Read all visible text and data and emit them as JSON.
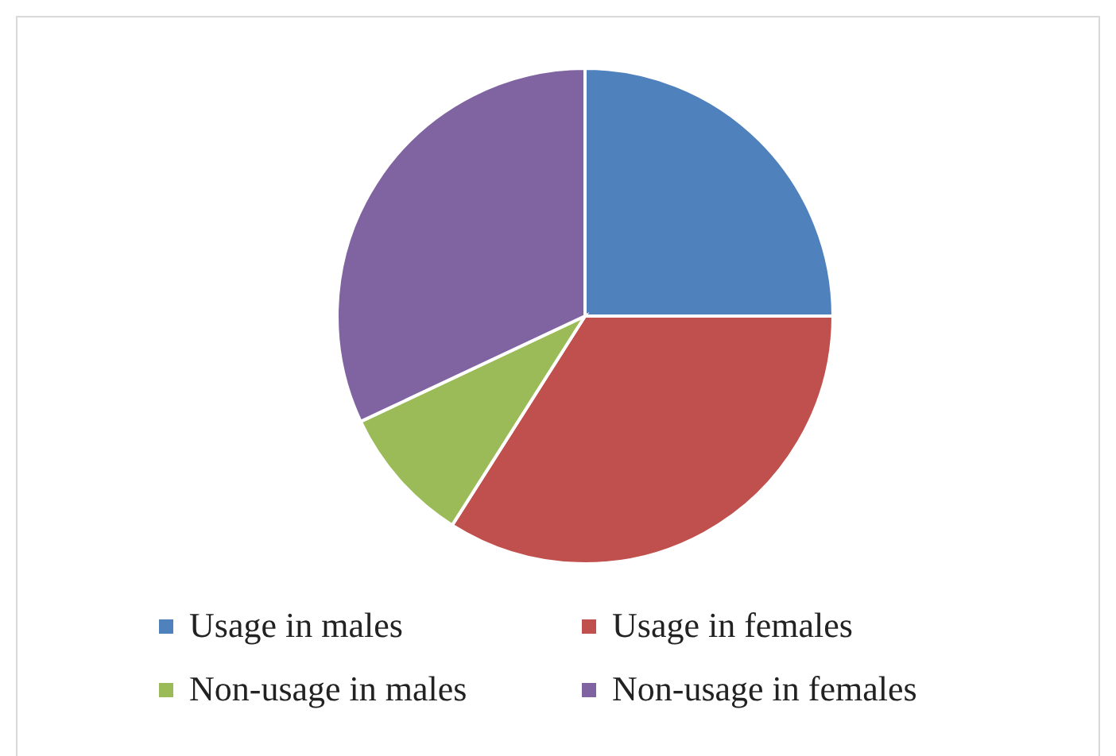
{
  "chart_data": {
    "type": "pie",
    "categories": [
      "Usage in males",
      "Usage in females",
      "Non-usage in males",
      "Non-usage in females"
    ],
    "values": [
      25,
      34,
      9,
      32
    ],
    "colors": [
      "#4f81bd",
      "#c0504d",
      "#9bbb59",
      "#8064a2"
    ],
    "legend": "bottom"
  }
}
